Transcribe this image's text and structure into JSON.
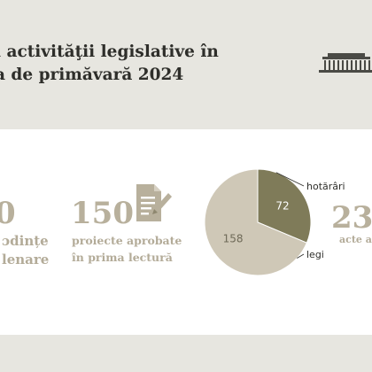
{
  "title_lines": [
    "l activităţii legislative în",
    "a de primăvară 2024"
  ],
  "icons": {
    "building": "parliament-building-icon",
    "document": "document-pen-icon"
  },
  "colors": {
    "background": "#e7e6e0",
    "card": "#ffffff",
    "dark_olive": "#7f7b59",
    "beige": "#cfc8b7",
    "accent_text": "#b8b09c"
  },
  "stats": {
    "sittings": {
      "number": "0",
      "label_lines": [
        "ɔdințe",
        "lenare"
      ]
    },
    "projects": {
      "number": "150",
      "label_lines": [
        "proiecte aprobate",
        "în prima lectură"
      ]
    },
    "acts": {
      "number": "23",
      "label": "acte ado"
    }
  },
  "chart_data": {
    "type": "pie",
    "slices": [
      {
        "label": "hotărâri",
        "value": 72,
        "color": "#7f7b59"
      },
      {
        "label": "legi",
        "value": 158,
        "color": "#cfc8b7"
      }
    ]
  }
}
